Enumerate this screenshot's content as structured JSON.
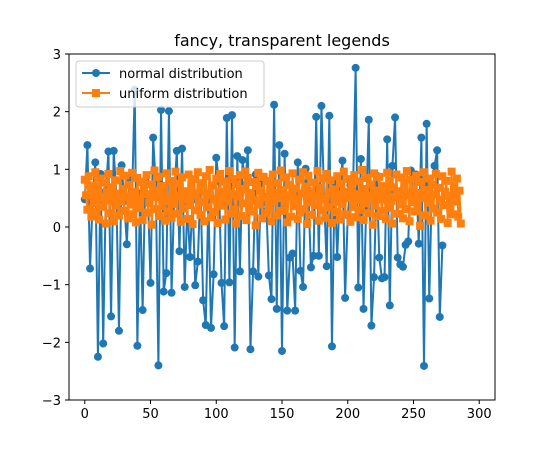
{
  "chart_data": {
    "type": "line",
    "title": "fancy, transparent legends",
    "xlabel": "",
    "ylabel": "",
    "xlim": [
      -12,
      312
    ],
    "ylim": [
      -3,
      3
    ],
    "x_ticks": [
      0,
      50,
      100,
      150,
      200,
      250,
      300
    ],
    "y_ticks": [
      -3,
      -2,
      -1,
      0,
      1,
      2,
      3
    ],
    "x_tick_labels": [
      "0",
      "50",
      "100",
      "150",
      "200",
      "250",
      "300"
    ],
    "y_tick_labels": [
      "−3",
      "−2",
      "−1",
      "0",
      "1",
      "2",
      "3"
    ],
    "grid": false,
    "legend_placement": "upper-left",
    "series": [
      {
        "name": "normal distribution",
        "color": "#1f77b4",
        "marker": "circle",
        "x_start": 0,
        "x_step": 2,
        "values": [
          0.48,
          1.42,
          -0.72,
          0.45,
          1.12,
          -2.25,
          0.92,
          -2.02,
          0.62,
          1.31,
          -1.55,
          1.32,
          0.57,
          -1.8,
          1.07,
          0.45,
          -0.3,
          0.82,
          0.55,
          2.38,
          -2.06,
          0.58,
          -1.44,
          0.81,
          0.55,
          -0.97,
          1.55,
          0.73,
          -2.4,
          2.03,
          -1.12,
          -0.8,
          2.01,
          -1.14,
          0.53,
          1.32,
          -0.42,
          1.36,
          -1.04,
          0.38,
          -0.52,
          0.47,
          -1.01,
          -0.6,
          0.75,
          -1.27,
          -1.7,
          0.48,
          -1.75,
          -0.82,
          1.2,
          0.79,
          -0.97,
          -1.72,
          1.89,
          -0.96,
          1.94,
          -2.09,
          1.23,
          -0.77,
          1.16,
          0.73,
          1.33,
          -2.12,
          -0.77,
          0.91,
          -0.86,
          0.74,
          0.2,
          0.42,
          -0.84,
          -1.25,
          2.12,
          -1.42,
          1.42,
          -2.15,
          1.27,
          -1.45,
          -0.53,
          -0.46,
          -1.45,
          1.12,
          -0.76,
          -1.04,
          1.01,
          0.64,
          -0.7,
          -0.5,
          1.91,
          -0.5,
          2.1,
          0.52,
          -0.68,
          1.93,
          -2.07,
          0.78,
          -0.52,
          0.62,
          1.15,
          -1.23,
          0.2,
          0.72,
          0.64,
          2.76,
          -1.05,
          1.18,
          -1.42,
          0.32,
          1.86,
          -1.71,
          -0.87,
          0.89,
          -0.53,
          -0.89,
          -0.87,
          1.52,
          -1.36,
          1.06,
          1.9,
          -0.53,
          -0.65,
          -0.69,
          -0.31,
          -0.25,
          0.98,
          0.55,
          0.91,
          -0.29,
          1.55,
          -2.41,
          1.79,
          -1.24,
          0.72,
          1.06,
          1.33,
          -1.56,
          -0.32
        ]
      },
      {
        "name": "uniform distribution",
        "color": "#ff7f0e",
        "marker": "square",
        "x_start": 0,
        "x_step": 1,
        "values": [
          0.82,
          0.55,
          0.3,
          0.88,
          0.72,
          0.18,
          0.64,
          0.41,
          0.95,
          0.26,
          0.7,
          0.13,
          0.84,
          0.5,
          0.35,
          0.77,
          0.06,
          0.6,
          0.92,
          0.24,
          0.46,
          0.69,
          0.1,
          0.81,
          0.37,
          0.58,
          0.2,
          0.97,
          0.44,
          0.66,
          0.28,
          0.89,
          0.53,
          0.15,
          0.73,
          0.39,
          0.94,
          0.22,
          0.61,
          0.08,
          0.85,
          0.47,
          0.33,
          0.78,
          0.12,
          0.68,
          0.57,
          0.9,
          0.25,
          0.42,
          0.74,
          0.04,
          0.63,
          0.98,
          0.31,
          0.52,
          0.87,
          0.19,
          0.71,
          0.36,
          0.59,
          0.11,
          0.93,
          0.45,
          0.27,
          0.8,
          0.16,
          0.67,
          0.4,
          0.96,
          0.23,
          0.54,
          0.75,
          0.09,
          0.86,
          0.32,
          0.62,
          0.49,
          0.14,
          0.91,
          0.38,
          0.7,
          0.05,
          0.83,
          0.58,
          0.29,
          0.95,
          0.43,
          0.21,
          0.76,
          0.65,
          0.1,
          0.88,
          0.34,
          0.56,
          0.99,
          0.17,
          0.72,
          0.48,
          0.26,
          0.84,
          0.07,
          0.61,
          0.92,
          0.37,
          0.5,
          0.79,
          0.13,
          0.68,
          0.44,
          0.97,
          0.23,
          0.57,
          0.83,
          0.3,
          0.06,
          0.74,
          0.53,
          0.9,
          0.19,
          0.41,
          0.66,
          0.96,
          0.12,
          0.85,
          0.35,
          0.59,
          0.27,
          0.78,
          0.46,
          0.03,
          0.71,
          0.94,
          0.39,
          0.63,
          0.15,
          0.87,
          0.52,
          0.24,
          0.8,
          0.33,
          0.69,
          0.1,
          0.91,
          0.45,
          0.6,
          0.2,
          0.76,
          0.5,
          0.98,
          0.28,
          0.64,
          0.42,
          0.86,
          0.08,
          0.55,
          0.73,
          0.18,
          0.93,
          0.36,
          0.67,
          0.47,
          0.14,
          0.82,
          0.25,
          0.58,
          0.95,
          0.31,
          0.7,
          0.05,
          0.89,
          0.43,
          0.62,
          0.21,
          0.77,
          0.38,
          0.54,
          0.97,
          0.11,
          0.68,
          0.29,
          0.84,
          0.49,
          0.16,
          0.92,
          0.34,
          0.6,
          0.81,
          0.07,
          0.65,
          0.44,
          0.26,
          0.88,
          0.56,
          0.13,
          0.75,
          0.4,
          0.96,
          0.22,
          0.61,
          0.5,
          0.83,
          0.09,
          0.72,
          0.35,
          0.9,
          0.17,
          0.57,
          0.46,
          0.79,
          0.3,
          0.99,
          0.12,
          0.66,
          0.41,
          0.85,
          0.24,
          0.53,
          0.74,
          0.04,
          0.93,
          0.37,
          0.63,
          0.19,
          0.87,
          0.48,
          0.28,
          0.71,
          0.58,
          0.14,
          0.94,
          0.33,
          0.8,
          0.45,
          0.06,
          0.69,
          0.52,
          0.91,
          0.23,
          0.62,
          0.39,
          0.86,
          0.15,
          0.76,
          0.31,
          0.97,
          0.55,
          0.1,
          0.82,
          0.43,
          0.67,
          0.27,
          0.89,
          0.36,
          0.59,
          0.02,
          0.78,
          0.5,
          0.95,
          0.2,
          0.64,
          0.42,
          0.84,
          0.11,
          0.73,
          0.32,
          0.57,
          0.92,
          0.25,
          0.68,
          0.47,
          0.14,
          0.88,
          0.38,
          0.61,
          0.8,
          0.07,
          0.54,
          0.35,
          0.96,
          0.22,
          0.7,
          0.44,
          0.84,
          0.18,
          0.63,
          0.06
        ]
      }
    ]
  }
}
